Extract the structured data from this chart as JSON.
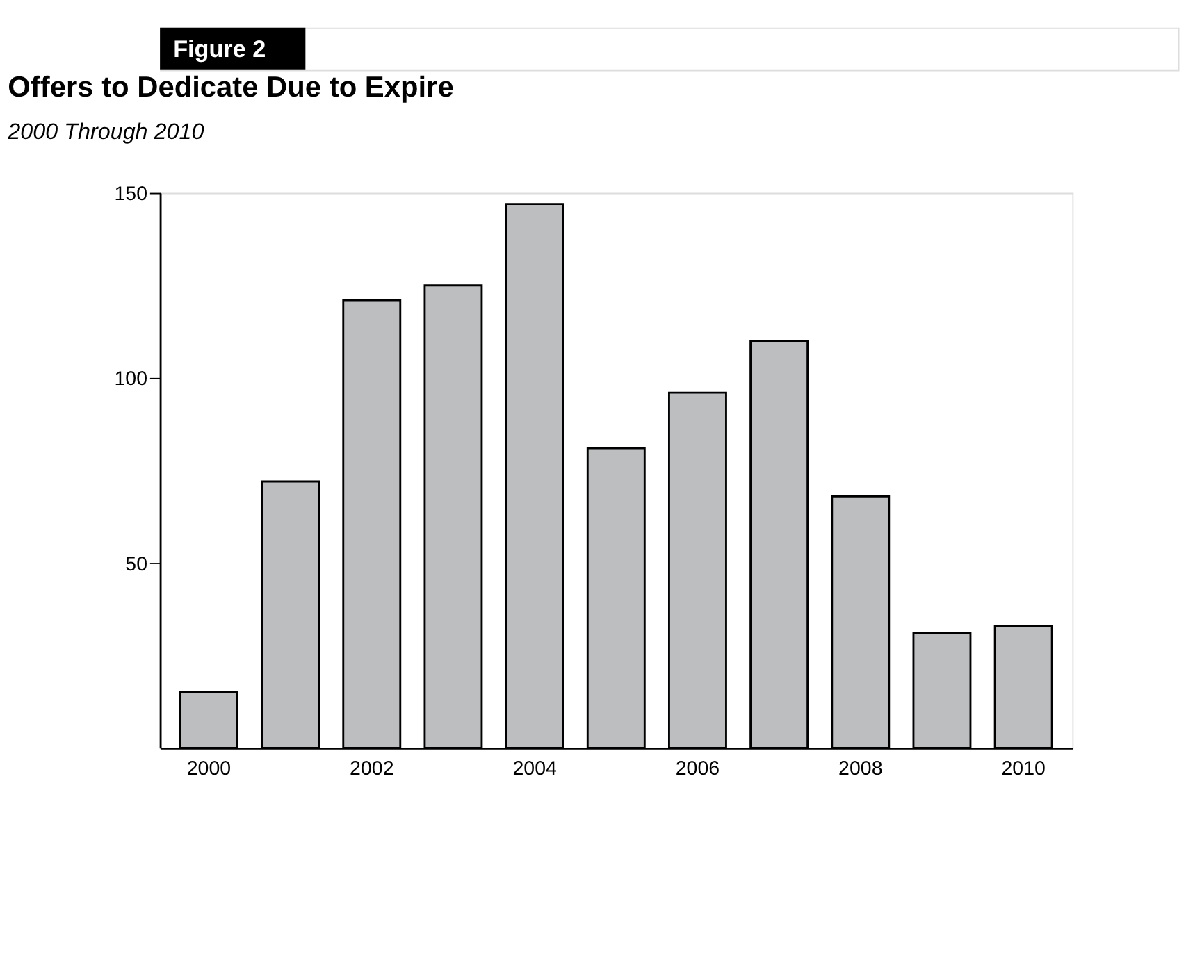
{
  "chart_data": {
    "type": "bar",
    "title": "Offers to Dedicate Due to Expire",
    "subtitle": "2000 Through 2010",
    "annotations": [
      "Figure 2"
    ],
    "categories": [
      "2000",
      null,
      "2002",
      null,
      "2004",
      null,
      "2006",
      null,
      "2008",
      null,
      "2010"
    ],
    "values": [
      15,
      72,
      121,
      125,
      147,
      81,
      96,
      110,
      68,
      31,
      33
    ],
    "color": "#bcbec0",
    "ylim": [
      0,
      150
    ],
    "yticks": [
      50,
      100,
      150
    ],
    "grid": false
  }
}
